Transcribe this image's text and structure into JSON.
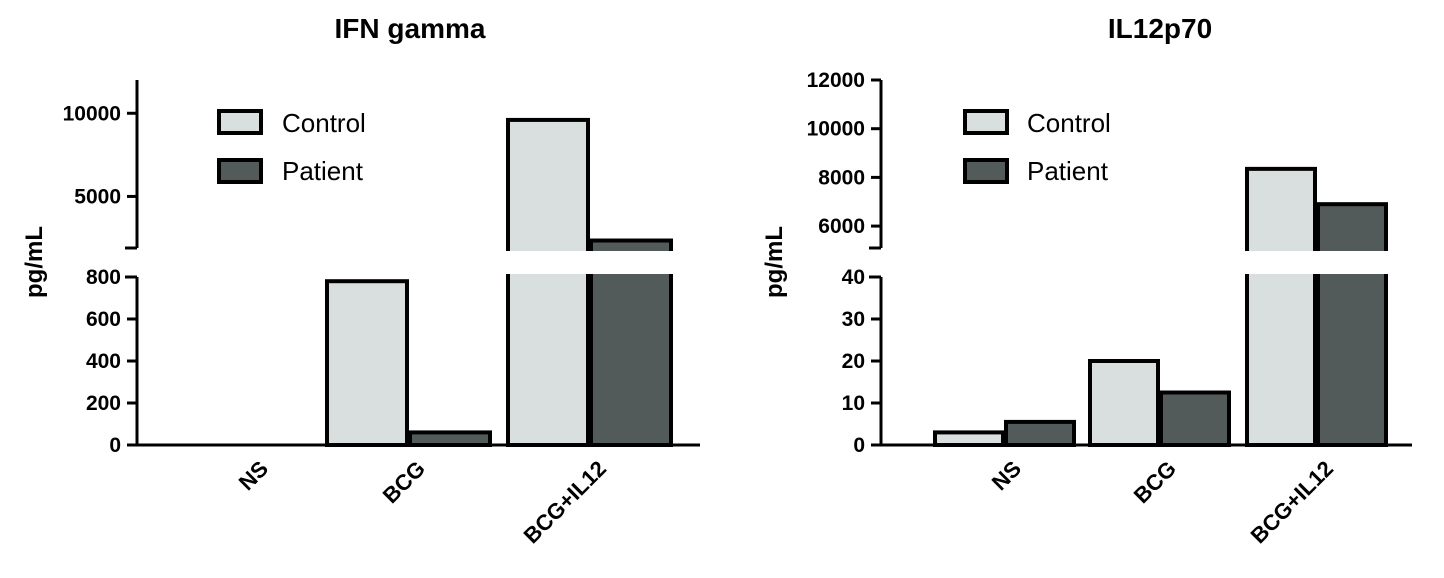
{
  "chart_data": [
    {
      "type": "bar",
      "title": "IFN gamma",
      "ylabel": "pg/mL",
      "xlabel": "",
      "categories": [
        "NS",
        "BCG",
        "BCG+IL12"
      ],
      "series": [
        {
          "name": "Control",
          "values": [
            0,
            780,
            9600
          ],
          "color": "#d9dfde"
        },
        {
          "name": "Patient",
          "values": [
            0,
            60,
            2350
          ],
          "color": "#525a5a"
        }
      ],
      "axis_break": {
        "lower": {
          "ylim": [
            0,
            800
          ],
          "ticks": [
            "0",
            "200",
            "400",
            "600",
            "800"
          ]
        },
        "upper": {
          "ylim": [
            1900,
            12000
          ],
          "ticks": [
            "5000",
            "10000"
          ]
        }
      },
      "legend": "top-center",
      "grid": false
    },
    {
      "type": "bar",
      "title": "IL12p70",
      "ylabel": "pg/mL",
      "xlabel": "",
      "categories": [
        "NS",
        "BCG",
        "BCG+IL12"
      ],
      "series": [
        {
          "name": "Control",
          "values": [
            3,
            20,
            8350
          ],
          "color": "#d9dfde"
        },
        {
          "name": "Patient",
          "values": [
            5.5,
            12.5,
            6900
          ],
          "color": "#525a5a"
        }
      ],
      "axis_break": {
        "lower": {
          "ylim": [
            0,
            40
          ],
          "ticks": [
            "0",
            "10",
            "20",
            "30",
            "40"
          ]
        },
        "upper": {
          "ylim": [
            5100,
            12000
          ],
          "ticks": [
            "6000",
            "8000",
            "10000",
            "12000"
          ]
        }
      },
      "legend": "top-center",
      "grid": false
    }
  ]
}
